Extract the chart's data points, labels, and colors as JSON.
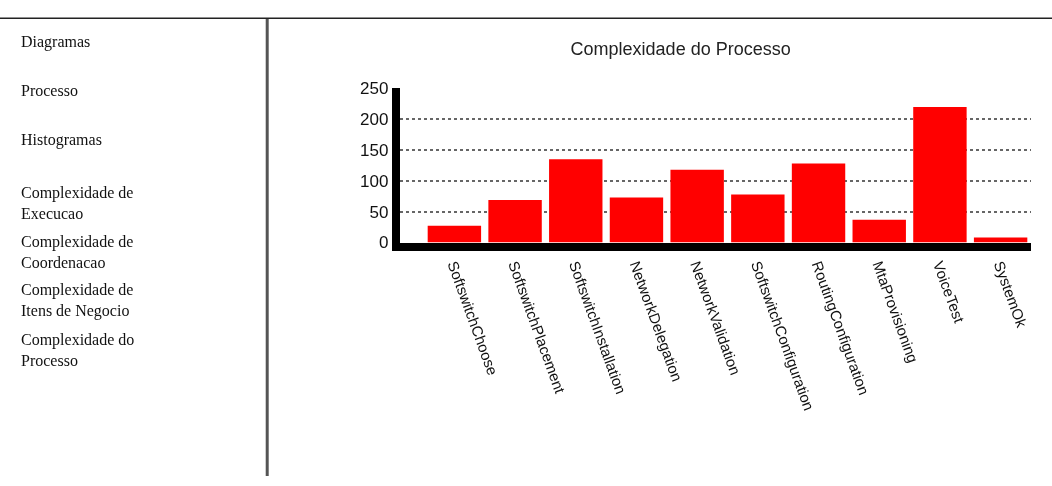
{
  "chart_data": {
    "type": "bar",
    "title": "Complexidade do Processo",
    "categories": [
      "SoftswitchChoose",
      "SoftswitchPlacement",
      "SoftswitchInstallation",
      "NetworkDelegation",
      "NetworkValidation",
      "SoftswitchConfiguration",
      "RoutingConfiguration",
      "MtaProvisioning",
      "VoiceTest",
      "SystemOk"
    ],
    "values": [
      27,
      69,
      135,
      73,
      118,
      78,
      128,
      37,
      220,
      8
    ],
    "color": "#ff0000",
    "ylim": [
      0,
      250
    ],
    "yticks": [
      0,
      50,
      100,
      150,
      200,
      250
    ],
    "grid": "y",
    "annotations": [
      "Diagramas",
      "Processo",
      "Histogramas",
      "Complexidade de Execucao",
      "Complexidade de Coordenacao",
      "Complexidade de Itens de Negocio",
      "Complexidade do Processo"
    ]
  }
}
